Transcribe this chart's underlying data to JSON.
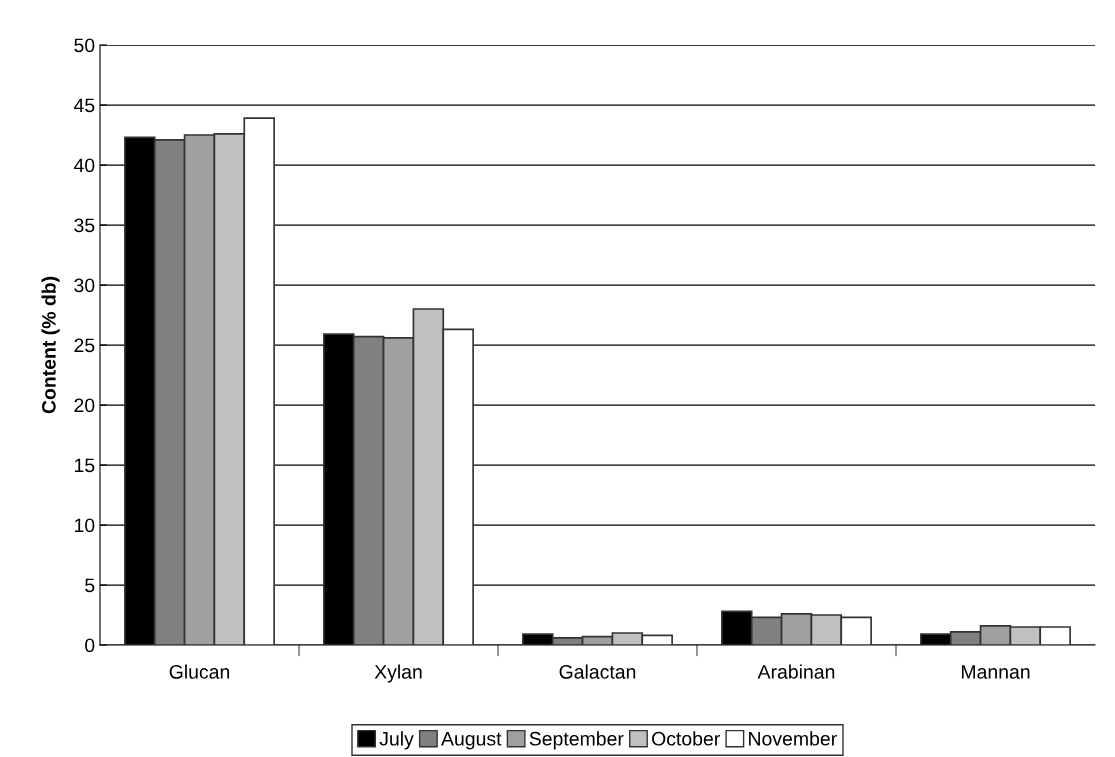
{
  "chart_data": {
    "type": "bar",
    "ylabel": "Content (% db)",
    "categories": [
      "Glucan",
      "Xylan",
      "Galactan",
      "Arabinan",
      "Mannan"
    ],
    "series": [
      {
        "name": "July",
        "color": "#000000",
        "values": [
          42.3,
          25.9,
          0.9,
          2.8,
          0.9
        ]
      },
      {
        "name": "August",
        "color": "#808080",
        "values": [
          42.1,
          25.7,
          0.6,
          2.3,
          1.1
        ]
      },
      {
        "name": "September",
        "color": "#a0a0a0",
        "values": [
          42.5,
          25.6,
          0.7,
          2.6,
          1.6
        ]
      },
      {
        "name": "October",
        "color": "#c0c0c0",
        "values": [
          42.6,
          28.0,
          1.0,
          2.5,
          1.5
        ]
      },
      {
        "name": "November",
        "color": "#ffffff",
        "values": [
          43.9,
          26.3,
          0.8,
          2.3,
          1.5
        ]
      }
    ],
    "ylim": [
      0,
      50
    ],
    "yticks": [
      0,
      5,
      10,
      15,
      20,
      25,
      30,
      35,
      40,
      45,
      50
    ],
    "grid": "y",
    "legend": "bottom"
  }
}
